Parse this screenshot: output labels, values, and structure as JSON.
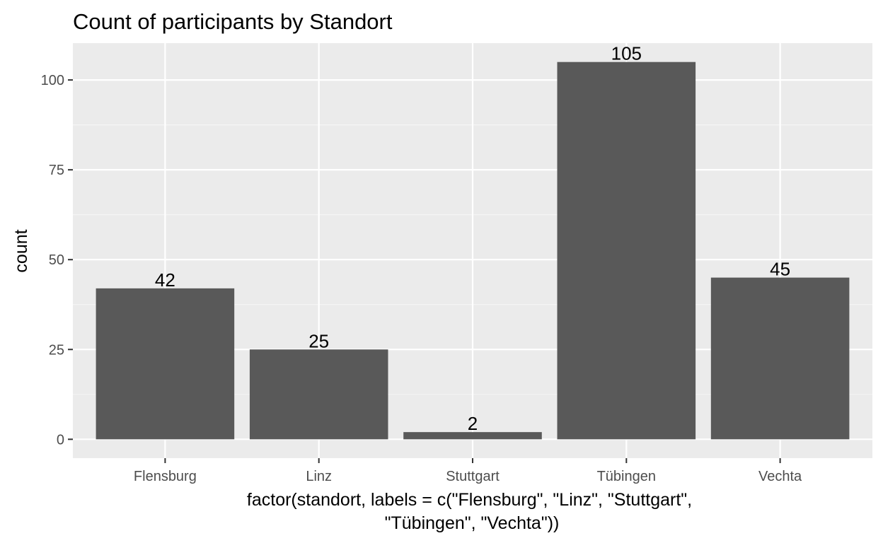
{
  "colors": {
    "panel_background": "#EBEBEB",
    "grid_major": "#FFFFFF",
    "grid_minor": "#F5F5F5",
    "bar_fill": "#595959",
    "tick_text": "#4D4D4D",
    "text": "#000000"
  },
  "chart_data": {
    "type": "bar",
    "title": "Count of participants by Standort",
    "xlabel_lines": [
      "factor(standort, labels = c(\"Flensburg\", \"Linz\", \"Stuttgart\",",
      "\"Tübingen\", \"Vechta\"))"
    ],
    "ylabel": "count",
    "categories": [
      "Flensburg",
      "Linz",
      "Stuttgart",
      "Tübingen",
      "Vechta"
    ],
    "values": [
      42,
      25,
      2,
      105,
      45
    ],
    "data_labels": [
      "42",
      "25",
      "2",
      "105",
      "45"
    ],
    "ylim": [
      -5.25,
      110.25
    ],
    "y_ticks": [
      0,
      25,
      50,
      75,
      100
    ],
    "y_tick_labels": [
      "0",
      "25",
      "50",
      "75",
      "100"
    ],
    "grid": true,
    "legend": "none"
  }
}
